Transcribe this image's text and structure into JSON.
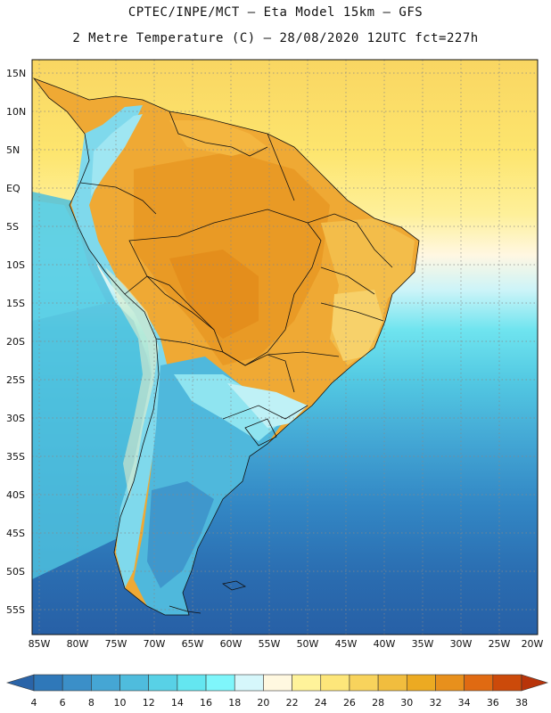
{
  "title_line1": "CPTEC/INPE/MCT –   Eta Model 15km – GFS",
  "title_line2": "2 Metre Temperature (C) – 28/08/2020 12UTC fct=227h",
  "lat_labels": [
    "15N",
    "10N",
    "5N",
    "EQ",
    "5S",
    "10S",
    "15S",
    "20S",
    "25S",
    "30S",
    "35S",
    "40S",
    "45S",
    "50S",
    "55S"
  ],
  "lon_labels": [
    "85W",
    "80W",
    "75W",
    "70W",
    "65W",
    "60W",
    "55W",
    "50W",
    "45W",
    "40W",
    "35W",
    "30W",
    "25W",
    "20W"
  ],
  "colorbar": {
    "labels": [
      "4",
      "6",
      "8",
      "10",
      "12",
      "14",
      "16",
      "18",
      "20",
      "22",
      "24",
      "26",
      "28",
      "30",
      "32",
      "34",
      "36",
      "38"
    ],
    "colors": [
      "#2a64a8",
      "#2f78b9",
      "#3b8fc8",
      "#45a6d4",
      "#4fbcdd",
      "#58d1e6",
      "#64e6f0",
      "#7ff6fb",
      "#d6f7fb",
      "#fff8e0",
      "#fff39a",
      "#fde67a",
      "#f8d35c",
      "#f1bd3e",
      "#ecaa22",
      "#e8901c",
      "#e06a12",
      "#cc4a0a",
      "#b8340a"
    ]
  }
}
